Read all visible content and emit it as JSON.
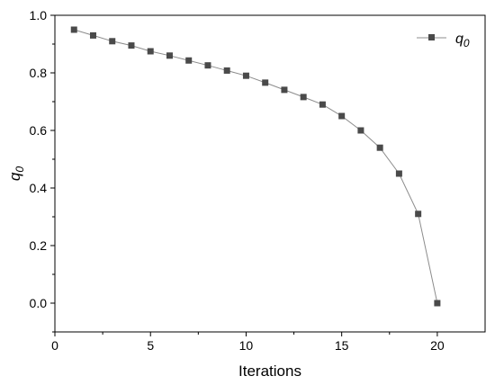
{
  "chart_data": {
    "type": "line",
    "xlabel": "Iterations",
    "ylabel": {
      "base": "q",
      "subscript": "0"
    },
    "xlim": [
      0,
      22.5
    ],
    "ylim": [
      -0.1,
      1.0
    ],
    "x_ticks": [
      0,
      5,
      10,
      15,
      20
    ],
    "x_tick_labels": [
      "0",
      "5",
      "10",
      "15",
      "20"
    ],
    "y_ticks": [
      0.0,
      0.2,
      0.4,
      0.6,
      0.8,
      1.0
    ],
    "y_tick_labels": [
      "0.0",
      "0.2",
      "0.4",
      "0.6",
      "0.8",
      "1.0"
    ],
    "grid": false,
    "legend_position": "top-right",
    "series": [
      {
        "name": {
          "base": "q",
          "subscript": "0"
        },
        "color": "#4a4a4a",
        "line_color": "#8c8c8c",
        "marker": "square",
        "x": [
          1,
          2,
          3,
          4,
          5,
          6,
          7,
          8,
          9,
          10,
          11,
          12,
          13,
          14,
          15,
          16,
          17,
          18,
          19,
          20
        ],
        "y": [
          0.95,
          0.93,
          0.91,
          0.895,
          0.875,
          0.86,
          0.843,
          0.826,
          0.808,
          0.79,
          0.766,
          0.741,
          0.716,
          0.69,
          0.65,
          0.6,
          0.54,
          0.45,
          0.31,
          0.0
        ]
      }
    ]
  }
}
